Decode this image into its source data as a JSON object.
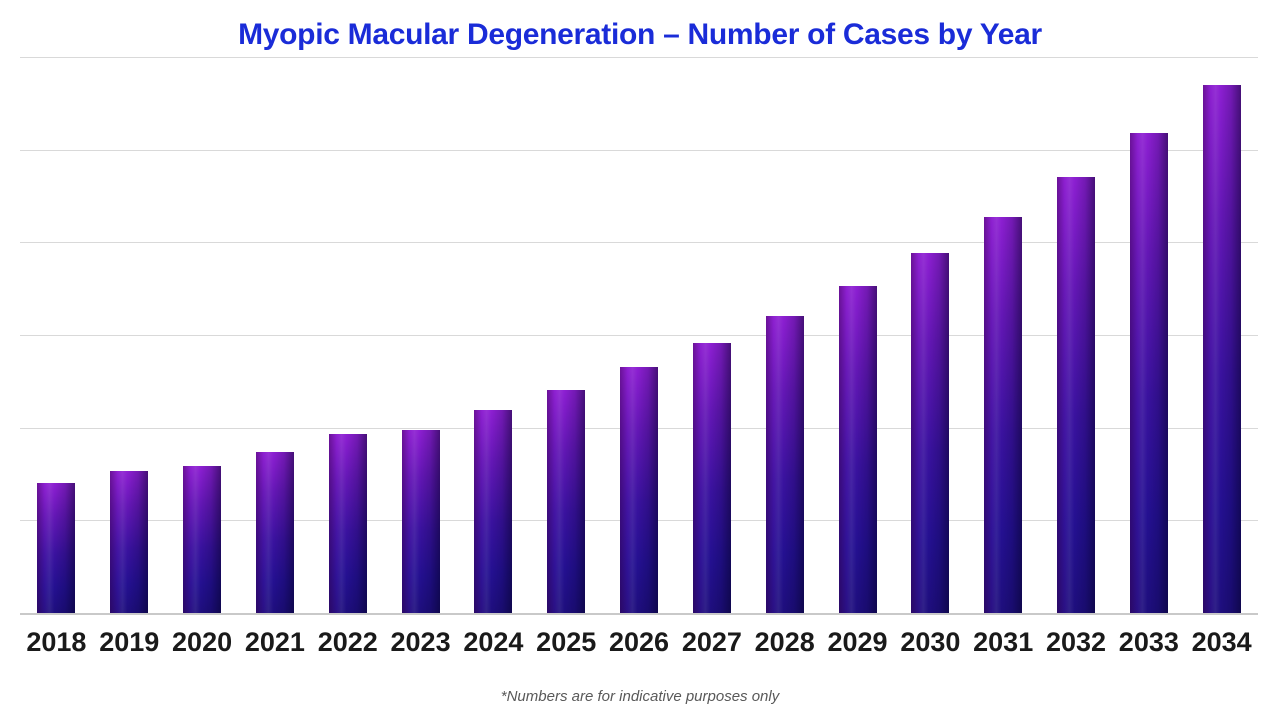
{
  "header": {
    "title": "Myopic Macular Degeneration – Number of Cases by Year",
    "title_color": "#1a2cd8"
  },
  "footnote": {
    "text": "*Numbers are for indicative purposes only",
    "color": "#595959"
  },
  "chart_data": {
    "type": "bar",
    "title": "Myopic Macular Degeneration – Number of Cases by Year",
    "categories": [
      "2018",
      "2019",
      "2020",
      "2021",
      "2022",
      "2023",
      "2024",
      "2025",
      "2026",
      "2027",
      "2028",
      "2029",
      "2030",
      "2031",
      "2032",
      "2033",
      "2034"
    ],
    "values": [
      140,
      153,
      159,
      174,
      193,
      198,
      219,
      241,
      265,
      291,
      320,
      353,
      388,
      427,
      470,
      518,
      570
    ],
    "xlabel": "",
    "ylabel": "",
    "ylim": [
      0,
      600
    ],
    "gridline_interval": 100,
    "grid": true,
    "y_tick_labels_visible": false,
    "legend_position": "none",
    "annotations": [
      "*Numbers are for indicative purposes only"
    ],
    "bar_style": {
      "effect": "3d-cylinder-diagonal-shading",
      "gradient_top": "#8d1fd2",
      "gradient_mid": "#3a129f",
      "gradient_bottom": "#1e0e7d"
    },
    "gridline_color": "#d9d9d9",
    "axis_line_color": "#c9c9c9",
    "x_tick_color": "#1a1a1a"
  }
}
